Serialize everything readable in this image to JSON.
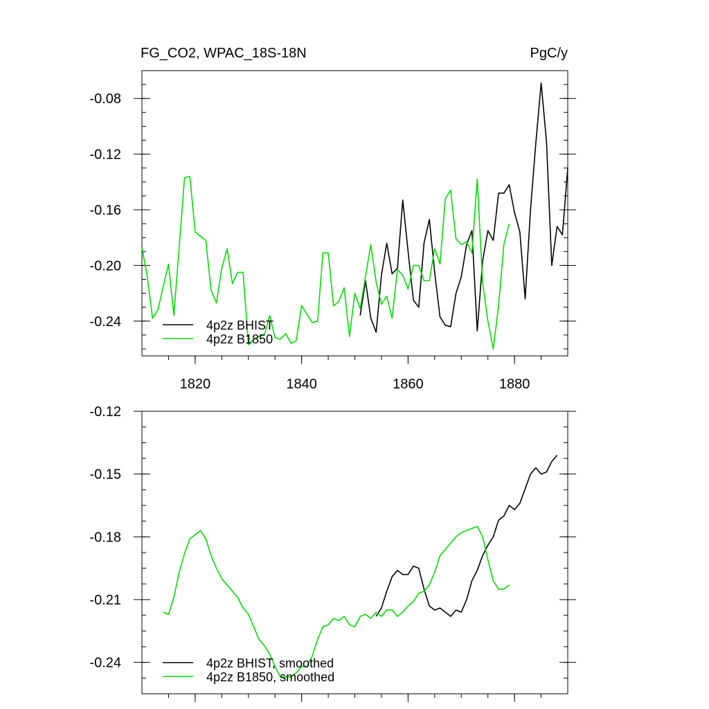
{
  "chart_data": [
    {
      "type": "line",
      "title": "FG_CO2, WPAC_18S-18N",
      "units": "PgC/y",
      "xlim": [
        1810,
        1890
      ],
      "ylim": [
        -0.265,
        -0.06
      ],
      "x_ticks": [
        1820,
        1840,
        1860,
        1880
      ],
      "x_tick_labels": [
        "1820",
        "1840",
        "1860",
        "1880"
      ],
      "y_ticks": [
        -0.24,
        -0.2,
        -0.16,
        -0.12,
        -0.08
      ],
      "y_tick_labels": [
        "-0.24",
        "-0.20",
        "-0.16",
        "-0.12",
        "-0.08"
      ],
      "legend_position": "bottom-left",
      "series": [
        {
          "name": "4p2z BHIST",
          "color": "#000000",
          "x_start": 1851,
          "values": [
            -0.236,
            -0.211,
            -0.238,
            -0.248,
            -0.207,
            -0.184,
            -0.206,
            -0.202,
            -0.153,
            -0.19,
            -0.225,
            -0.23,
            -0.184,
            -0.167,
            -0.205,
            -0.237,
            -0.243,
            -0.244,
            -0.22,
            -0.208,
            -0.185,
            -0.175,
            -0.247,
            -0.197,
            -0.175,
            -0.182,
            -0.148,
            -0.148,
            -0.142,
            -0.162,
            -0.176,
            -0.224,
            -0.16,
            -0.112,
            -0.069,
            -0.111,
            -0.2,
            -0.172,
            -0.178,
            -0.13
          ]
        },
        {
          "name": "4p2z B1850",
          "color": "#00dd00",
          "x_start": 1810,
          "values": [
            -0.187,
            -0.208,
            -0.238,
            -0.232,
            -0.215,
            -0.199,
            -0.236,
            -0.187,
            -0.137,
            -0.136,
            -0.176,
            -0.179,
            -0.182,
            -0.218,
            -0.227,
            -0.202,
            -0.188,
            -0.213,
            -0.205,
            -0.205,
            -0.257,
            -0.253,
            -0.251,
            -0.25,
            -0.236,
            -0.252,
            -0.253,
            -0.249,
            -0.256,
            -0.254,
            -0.229,
            -0.235,
            -0.241,
            -0.24,
            -0.191,
            -0.191,
            -0.229,
            -0.226,
            -0.216,
            -0.251,
            -0.22,
            -0.231,
            -0.208,
            -0.185,
            -0.212,
            -0.228,
            -0.222,
            -0.238,
            -0.203,
            -0.207,
            -0.217,
            -0.2,
            -0.2,
            -0.211,
            -0.211,
            -0.188,
            -0.199,
            -0.152,
            -0.146,
            -0.181,
            -0.185,
            -0.183,
            -0.191,
            -0.138,
            -0.212,
            -0.24,
            -0.26,
            -0.229,
            -0.185,
            -0.17
          ]
        }
      ]
    },
    {
      "type": "line",
      "title": "",
      "units": "",
      "xlim": [
        1810,
        1890
      ],
      "ylim": [
        -0.255,
        -0.12
      ],
      "x_ticks": [
        1820,
        1840,
        1860,
        1880
      ],
      "x_tick_labels": [
        "",
        "",
        "",
        ""
      ],
      "y_ticks": [
        -0.24,
        -0.21,
        -0.18,
        -0.15,
        -0.12
      ],
      "y_tick_labels": [
        "-0.24",
        "-0.21",
        "-0.18",
        "-0.15",
        "-0.12"
      ],
      "legend_position": "bottom-left",
      "series": [
        {
          "name": "4p2z BHIST, smoothed",
          "color": "#000000",
          "x_start": 1854,
          "values": [
            -0.218,
            -0.214,
            -0.206,
            -0.199,
            -0.196,
            -0.198,
            -0.198,
            -0.194,
            -0.195,
            -0.205,
            -0.213,
            -0.215,
            -0.214,
            -0.216,
            -0.218,
            -0.215,
            -0.216,
            -0.21,
            -0.201,
            -0.196,
            -0.189,
            -0.184,
            -0.18,
            -0.172,
            -0.17,
            -0.165,
            -0.167,
            -0.164,
            -0.157,
            -0.15,
            -0.147,
            -0.15,
            -0.149,
            -0.144,
            -0.141
          ]
        },
        {
          "name": "4p2z B1850, smoothed",
          "color": "#00dd00",
          "x_start": 1814,
          "values": [
            -0.216,
            -0.217,
            -0.209,
            -0.197,
            -0.188,
            -0.181,
            -0.179,
            -0.177,
            -0.181,
            -0.189,
            -0.195,
            -0.2,
            -0.203,
            -0.206,
            -0.209,
            -0.214,
            -0.217,
            -0.223,
            -0.229,
            -0.232,
            -0.236,
            -0.242,
            -0.247,
            -0.247,
            -0.247,
            -0.245,
            -0.242,
            -0.242,
            -0.237,
            -0.229,
            -0.223,
            -0.222,
            -0.219,
            -0.22,
            -0.218,
            -0.222,
            -0.223,
            -0.218,
            -0.217,
            -0.219,
            -0.216,
            -0.218,
            -0.215,
            -0.215,
            -0.218,
            -0.216,
            -0.213,
            -0.211,
            -0.207,
            -0.206,
            -0.203,
            -0.197,
            -0.189,
            -0.186,
            -0.183,
            -0.18,
            -0.178,
            -0.177,
            -0.176,
            -0.175,
            -0.18,
            -0.191,
            -0.201,
            -0.205,
            -0.205,
            -0.203
          ]
        }
      ]
    }
  ]
}
